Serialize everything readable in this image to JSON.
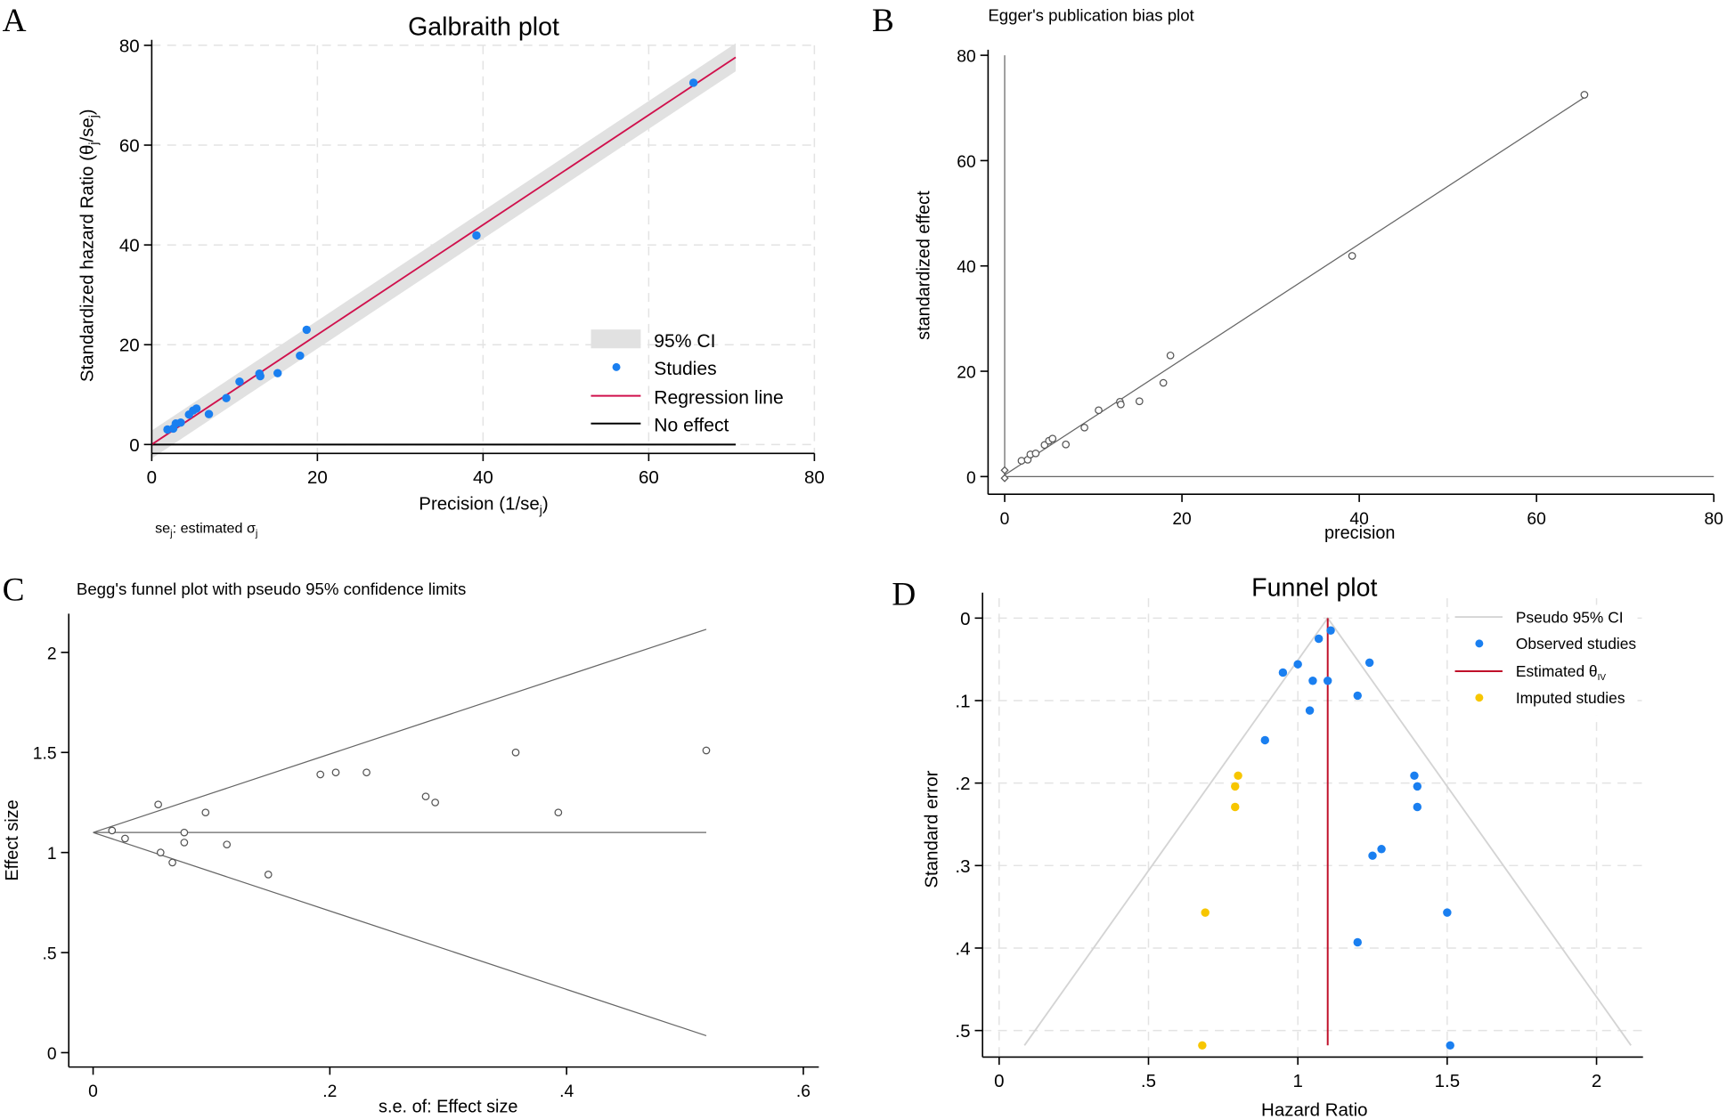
{
  "chart_data": [
    {
      "id": "A",
      "type": "scatter",
      "panel_letter": "A",
      "title": "Galbraith plot",
      "xlabel": "Precision (1/se",
      "xlabel_sub": "j",
      "xlabel_end": ")",
      "ylabel": "Standardized hazard Ratio (θ",
      "ylabel_sub": "j",
      "ylabel_mid": "/se",
      "ylabel_end": ")",
      "note": "se",
      "note_sub": "j",
      "note_mid": ": estimated σ",
      "note_end": "j",
      "xlim": [
        0,
        80
      ],
      "ylim": [
        -2,
        80
      ],
      "xticks": [
        0,
        20,
        40,
        60,
        80
      ],
      "yticks": [
        0,
        20,
        40,
        60,
        80
      ],
      "xtick_labels": [
        "0",
        "20",
        "40",
        "60",
        "80"
      ],
      "ytick_labels": [
        "0",
        "20",
        "40",
        "60",
        "80"
      ],
      "grid": true,
      "legend_position": "bottom-right",
      "legend": [
        "95% CI",
        "Studies",
        "Regression line",
        "No effect"
      ],
      "colors": {
        "ci": "#e1e1e1",
        "studies": "#1a7ff0",
        "regression": "#d0104c",
        "no_effect": "#000000"
      },
      "regression": {
        "x": [
          0,
          70.5
        ],
        "y": [
          0,
          77.6
        ],
        "ci_halfwidth": 2.8
      },
      "no_effect": {
        "x": [
          0,
          70.5
        ],
        "y": [
          0,
          0
        ]
      },
      "points": {
        "x": [
          1.9,
          2.6,
          2.9,
          3.5,
          4.5,
          5.0,
          5.4,
          6.9,
          9.0,
          10.6,
          13.0,
          13.1,
          15.2,
          17.9,
          18.7,
          39.2,
          65.4
        ],
        "y": [
          3.0,
          3.2,
          4.2,
          4.4,
          6.0,
          6.8,
          7.2,
          6.1,
          9.3,
          12.6,
          14.2,
          13.7,
          14.3,
          17.8,
          23.0,
          41.9,
          72.5
        ]
      }
    },
    {
      "id": "B",
      "type": "scatter",
      "panel_letter": "B",
      "title": "Egger's publication bias plot",
      "xlabel": "precision",
      "ylabel": "standardized effect",
      "xlim": [
        0,
        80
      ],
      "ylim": [
        0,
        80
      ],
      "xticks": [
        0,
        20,
        40,
        60,
        80
      ],
      "yticks": [
        0,
        20,
        40,
        60,
        80
      ],
      "xtick_labels": [
        "0",
        "20",
        "40",
        "60",
        "80"
      ],
      "ytick_labels": [
        "0",
        "20",
        "40",
        "60",
        "80"
      ],
      "grid": false,
      "colors": {
        "points": "#555555",
        "line": "#666666"
      },
      "fit_line": {
        "x": [
          0,
          65.4
        ],
        "y": [
          0.3,
          72.0
        ]
      },
      "intercept_ci": [
        1.2,
        -0.3
      ],
      "points": {
        "x": [
          1.9,
          2.6,
          2.9,
          3.5,
          4.5,
          5.0,
          5.4,
          6.9,
          9.0,
          10.6,
          13.0,
          13.1,
          15.2,
          17.9,
          18.7,
          39.2,
          65.4
        ],
        "y": [
          3.0,
          3.2,
          4.2,
          4.4,
          6.0,
          6.8,
          7.2,
          6.1,
          9.3,
          12.6,
          14.2,
          13.7,
          14.3,
          17.8,
          23.0,
          41.9,
          72.5
        ]
      }
    },
    {
      "id": "C",
      "type": "scatter",
      "panel_letter": "C",
      "title": "Begg's funnel plot with pseudo 95% confidence limits",
      "xlabel": "s.e. of: Effect size",
      "ylabel": "Effect size",
      "xlim": [
        0,
        0.6
      ],
      "ylim": [
        0,
        2
      ],
      "xticks": [
        0,
        0.2,
        0.4,
        0.6
      ],
      "yticks": [
        0,
        0.5,
        1,
        1.5,
        2
      ],
      "xtick_labels": [
        "0",
        ".2",
        ".4",
        ".6"
      ],
      "ytick_labels": [
        "0",
        ".5",
        "1",
        "1.5",
        "2"
      ],
      "grid": false,
      "colors": {
        "points": "#555555",
        "line": "#666666"
      },
      "center": 1.1,
      "limits_max_se": 0.518,
      "points": {
        "x": [
          0.016,
          0.027,
          0.055,
          0.057,
          0.067,
          0.077,
          0.077,
          0.095,
          0.113,
          0.148,
          0.192,
          0.205,
          0.231,
          0.281,
          0.289,
          0.357,
          0.393,
          0.518
        ],
        "y": [
          1.11,
          1.07,
          1.24,
          1.0,
          0.95,
          1.1,
          1.05,
          1.2,
          1.04,
          0.89,
          1.39,
          1.4,
          1.4,
          1.28,
          1.25,
          1.5,
          1.2,
          1.51
        ]
      }
    },
    {
      "id": "D",
      "type": "scatter",
      "panel_letter": "D",
      "title": "Funnel plot",
      "xlabel": "Hazard Ratio",
      "ylabel": "Standard error",
      "xlim": [
        0,
        2.1
      ],
      "ylim": [
        0.53,
        0
      ],
      "xticks": [
        0,
        0.5,
        1,
        1.5,
        2
      ],
      "yticks": [
        0,
        0.1,
        0.2,
        0.3,
        0.4,
        0.5
      ],
      "xtick_labels": [
        "0",
        ".5",
        "1",
        "1.5",
        "2"
      ],
      "ytick_labels": [
        "0",
        ".1",
        ".2",
        ".3",
        ".4",
        ".5"
      ],
      "grid": true,
      "legend_position": "top-right",
      "legend": [
        "Pseudo 95% CI",
        "Observed studies",
        "Estimated θ",
        "Imputed studies"
      ],
      "legend_sub": "IV",
      "colors": {
        "ci": "#d4d4d4",
        "observed": "#1a7ff0",
        "estimate": "#c0102a",
        "imputed": "#f7c600"
      },
      "estimate": 1.1,
      "max_se": 0.518,
      "observed": {
        "x": [
          1.11,
          1.07,
          1.24,
          1.0,
          0.95,
          1.05,
          1.1,
          1.2,
          1.04,
          0.89,
          1.39,
          1.4,
          1.4,
          1.28,
          1.25,
          1.5,
          1.2,
          1.51
        ],
        "y": [
          0.015,
          0.025,
          0.054,
          0.056,
          0.066,
          0.076,
          0.076,
          0.094,
          0.112,
          0.148,
          0.191,
          0.204,
          0.229,
          0.28,
          0.288,
          0.357,
          0.393,
          0.518
        ]
      },
      "imputed": {
        "x": [
          0.8,
          0.79,
          0.79,
          0.69,
          0.68
        ],
        "y": [
          0.191,
          0.204,
          0.229,
          0.357,
          0.518
        ]
      }
    }
  ]
}
